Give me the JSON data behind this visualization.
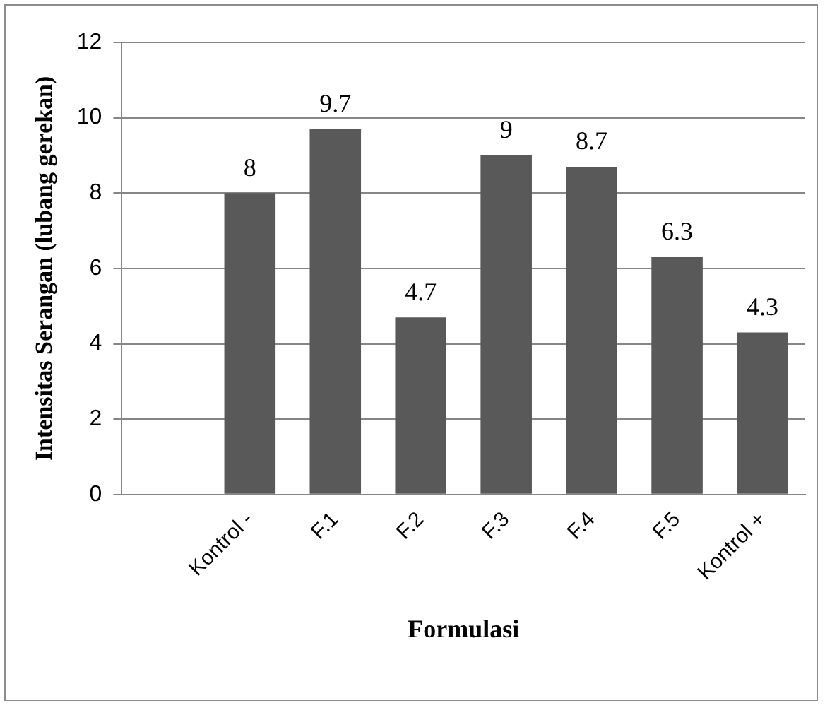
{
  "chart_data": {
    "type": "bar",
    "xlabel": "Formulasi",
    "ylabel": "Intensitas Serangan (lubang gerekan)",
    "categories": [
      null,
      "Kontrol -",
      "F.1",
      "F.2",
      "F.3",
      "F.4",
      "F.5",
      "Kontrol +"
    ],
    "values": [
      null,
      8,
      9.7,
      4.7,
      9,
      8.7,
      6.3,
      4.3
    ],
    "color": "#595959",
    "ylim": [
      0,
      12
    ],
    "yticks": [
      0,
      2,
      4,
      6,
      8,
      10,
      12
    ],
    "grid": "y",
    "legend": false,
    "data_labels": true
  }
}
